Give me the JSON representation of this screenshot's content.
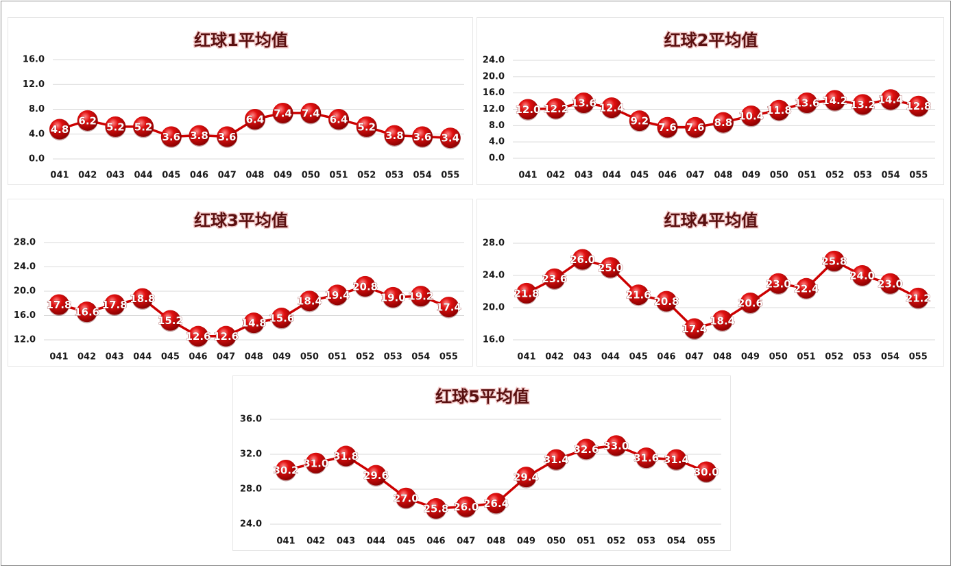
{
  "chart_data": [
    {
      "type": "line",
      "title": "红球1平均值",
      "categories": [
        "041",
        "042",
        "043",
        "044",
        "045",
        "046",
        "047",
        "048",
        "049",
        "050",
        "051",
        "052",
        "053",
        "054",
        "055"
      ],
      "values": [
        4.8,
        6.2,
        5.2,
        5.2,
        3.6,
        3.8,
        3.6,
        6.4,
        7.4,
        7.4,
        6.4,
        5.2,
        3.8,
        3.6,
        3.4
      ],
      "labels": [
        "4.8",
        "6.2",
        "5.2",
        "5.2",
        "3.6",
        "3.8",
        "3.6",
        "6.4",
        "7.4",
        "7.4",
        "6.4",
        "5.2",
        "3.8",
        "3.6",
        "3.4"
      ],
      "yticks": [
        "0.0",
        "4.0",
        "8.0",
        "12.0",
        "16.0"
      ],
      "ylim": [
        0,
        16
      ],
      "grid": true,
      "color": "#cc0000"
    },
    {
      "type": "line",
      "title": "红球2平均值",
      "categories": [
        "041",
        "042",
        "043",
        "044",
        "045",
        "046",
        "047",
        "048",
        "049",
        "050",
        "051",
        "052",
        "053",
        "054",
        "055"
      ],
      "values": [
        12.0,
        12.2,
        13.6,
        12.4,
        9.2,
        7.6,
        7.6,
        8.8,
        10.4,
        11.8,
        13.6,
        14.2,
        13.2,
        14.4,
        12.8
      ],
      "labels": [
        "12.0",
        "12.2",
        "13.6",
        "12.4",
        "9.2",
        "7.6",
        "7.6",
        "8.8",
        "10.4",
        "11.8",
        "13.6",
        "14.2",
        "13.2",
        "14.4",
        "12.8"
      ],
      "yticks": [
        "0.0",
        "4.0",
        "8.0",
        "12.0",
        "16.0",
        "20.0",
        "24.0"
      ],
      "ylim": [
        0,
        24
      ],
      "grid": true,
      "color": "#cc0000"
    },
    {
      "type": "line",
      "title": "红球3平均值",
      "categories": [
        "041",
        "042",
        "043",
        "044",
        "045",
        "046",
        "047",
        "048",
        "049",
        "050",
        "051",
        "052",
        "053",
        "054",
        "055"
      ],
      "values": [
        17.8,
        16.6,
        17.8,
        18.8,
        15.2,
        12.6,
        12.6,
        14.8,
        15.6,
        18.4,
        19.4,
        20.8,
        19.0,
        19.2,
        17.4
      ],
      "labels": [
        "17.8",
        "16.6",
        "17.8",
        "18.8",
        "15.2",
        "12.6",
        "12.6",
        "14.8",
        "15.6",
        "18.4",
        "19.4",
        "20.8",
        "19.0",
        "19.2",
        "17.4"
      ],
      "yticks": [
        "12.0",
        "16.0",
        "20.0",
        "24.0",
        "28.0"
      ],
      "ylim": [
        12,
        28
      ],
      "grid": true,
      "color": "#cc0000"
    },
    {
      "type": "line",
      "title": "红球4平均值",
      "categories": [
        "041",
        "042",
        "043",
        "044",
        "045",
        "046",
        "047",
        "048",
        "049",
        "050",
        "051",
        "052",
        "053",
        "054",
        "055"
      ],
      "values": [
        21.8,
        23.6,
        26.0,
        25.0,
        21.6,
        20.8,
        17.4,
        18.4,
        20.6,
        23.0,
        22.4,
        25.8,
        24.0,
        23.0,
        21.2
      ],
      "labels": [
        "21.8",
        "23.6",
        "26.0",
        "25.0",
        "21.6",
        "20.8",
        "17.4",
        "18.4",
        "20.6",
        "23.0",
        "22.4",
        "25.8",
        "24.0",
        "23.0",
        "21.2"
      ],
      "yticks": [
        "16.0",
        "20.0",
        "24.0",
        "28.0"
      ],
      "ylim": [
        16,
        28
      ],
      "grid": true,
      "color": "#cc0000"
    },
    {
      "type": "line",
      "title": "红球5平均值",
      "categories": [
        "041",
        "042",
        "043",
        "044",
        "045",
        "046",
        "047",
        "048",
        "049",
        "050",
        "051",
        "052",
        "053",
        "054",
        "055"
      ],
      "values": [
        30.2,
        31.0,
        31.8,
        29.6,
        27.0,
        25.8,
        26.0,
        26.4,
        29.4,
        31.4,
        32.6,
        33.0,
        31.6,
        31.4,
        30.0
      ],
      "labels": [
        "30.2",
        "31.0",
        "31.8",
        "29.6",
        "27.0",
        "25.8",
        "26.0",
        "26.4",
        "29.4",
        "31.4",
        "32.6",
        "33.0",
        "31.6",
        "31.4",
        "30.0"
      ],
      "yticks": [
        "24.0",
        "28.0",
        "32.0",
        "36.0"
      ],
      "ylim": [
        24,
        36
      ],
      "grid": true,
      "color": "#cc0000"
    }
  ]
}
